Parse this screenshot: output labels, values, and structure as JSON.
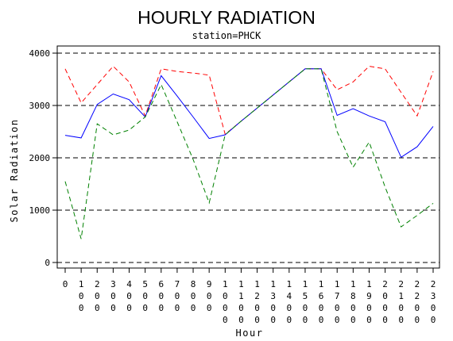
{
  "chart_data": {
    "type": "line",
    "title": "HOURLY RADIATION",
    "subtitle": "station=PHCK",
    "xlabel": "Hour",
    "ylabel": "Solar Radiation",
    "x": [
      "0",
      "100",
      "200",
      "300",
      "400",
      "500",
      "600",
      "700",
      "800",
      "900",
      "1000",
      "1100",
      "1200",
      "1300",
      "1400",
      "1500",
      "1600",
      "1700",
      "1800",
      "1900",
      "2000",
      "2100",
      "2200",
      "2300"
    ],
    "ylim": [
      0,
      4000
    ],
    "yticks": [
      "0",
      "1000",
      "2000",
      "3000",
      "4000"
    ],
    "grid": "horizontal-dashed",
    "legend": "none",
    "series": [
      {
        "color": "#ff0000",
        "dash": "dashed",
        "values": [
          3700,
          3050,
          3400,
          3750,
          3450,
          2800,
          3700,
          3650,
          3620,
          3580,
          2450,
          2700,
          2950,
          3200,
          3450,
          3700,
          3700,
          3300,
          3450,
          3750,
          3700,
          3250,
          2800,
          3650
        ]
      },
      {
        "color": "#0000ff",
        "dash": "solid",
        "values": [
          2430,
          2380,
          3020,
          3220,
          3110,
          2780,
          3570,
          3180,
          2780,
          2370,
          2440,
          2700,
          2950,
          3200,
          3450,
          3700,
          3700,
          2810,
          2940,
          2800,
          2690,
          2010,
          2210,
          2600
        ]
      },
      {
        "color": "#008000",
        "dash": "dashed",
        "values": [
          1550,
          450,
          2650,
          2440,
          2530,
          2780,
          3400,
          2690,
          1970,
          1140,
          2440,
          2700,
          2950,
          3200,
          3450,
          3700,
          3700,
          2500,
          1820,
          2300,
          1440,
          680,
          900,
          1130
        ]
      }
    ]
  }
}
